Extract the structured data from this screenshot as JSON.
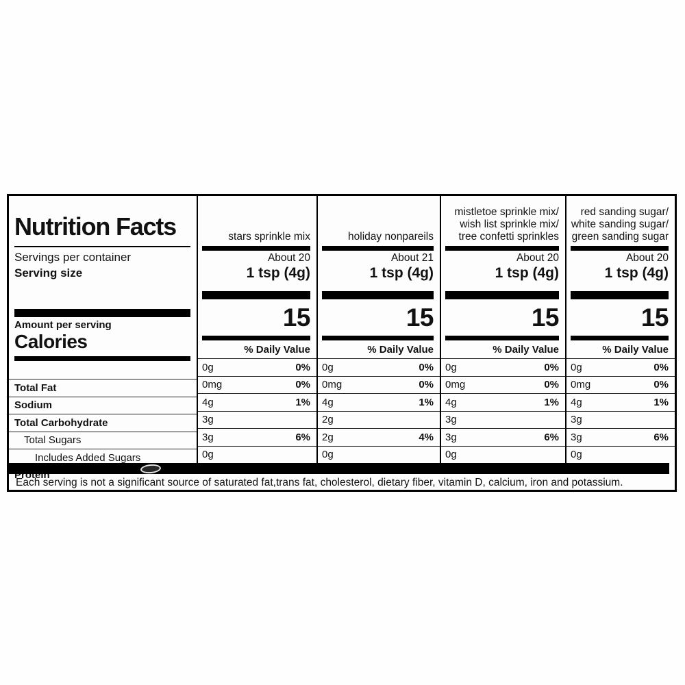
{
  "label": {
    "title": "Nutrition Facts",
    "servings_per_container_label": "Servings per container",
    "serving_size_label": "Serving size",
    "amount_per_serving_label": "Amount per serving",
    "calories_label": "Calories",
    "daily_value_label": "% Daily Value",
    "nutrients": [
      {
        "name": "Total Fat",
        "style": "bold",
        "indent": 0
      },
      {
        "name": "Sodium",
        "style": "bold",
        "indent": 0
      },
      {
        "name": "Total Carbohydrate",
        "style": "bold",
        "indent": 0
      },
      {
        "name": "Total Sugars",
        "style": "regular",
        "indent": 1
      },
      {
        "name": "Includes Added Sugars",
        "style": "regular",
        "indent": 2
      },
      {
        "name": "Protein",
        "style": "bold",
        "indent": 0
      }
    ],
    "products": [
      {
        "name_lines": [
          "stars sprinkle mix"
        ],
        "servings": "About 20",
        "serving_size": "1 tsp (4g)",
        "calories": "15",
        "rows": [
          {
            "amount": "0g",
            "dv": "0%"
          },
          {
            "amount": "0mg",
            "dv": "0%"
          },
          {
            "amount": "4g",
            "dv": "1%"
          },
          {
            "amount": "3g",
            "dv": ""
          },
          {
            "amount": "3g",
            "dv": "6%"
          },
          {
            "amount": "0g",
            "dv": ""
          }
        ]
      },
      {
        "name_lines": [
          "holiday nonpareils"
        ],
        "servings": "About 21",
        "serving_size": "1 tsp (4g)",
        "calories": "15",
        "rows": [
          {
            "amount": "0g",
            "dv": "0%"
          },
          {
            "amount": "0mg",
            "dv": "0%"
          },
          {
            "amount": "4g",
            "dv": "1%"
          },
          {
            "amount": "2g",
            "dv": ""
          },
          {
            "amount": "2g",
            "dv": "4%"
          },
          {
            "amount": "0g",
            "dv": ""
          }
        ]
      },
      {
        "name_lines": [
          "mistletoe sprinkle mix/",
          "wish list sprinkle mix/",
          "tree confetti sprinkles"
        ],
        "servings": "About 20",
        "serving_size": "1 tsp (4g)",
        "calories": "15",
        "rows": [
          {
            "amount": "0g",
            "dv": "0%"
          },
          {
            "amount": "0mg",
            "dv": "0%"
          },
          {
            "amount": "4g",
            "dv": "1%"
          },
          {
            "amount": "3g",
            "dv": ""
          },
          {
            "amount": "3g",
            "dv": "6%"
          },
          {
            "amount": "0g",
            "dv": ""
          }
        ]
      },
      {
        "name_lines": [
          "red sanding sugar/",
          "white sanding sugar/",
          "green sanding sugar"
        ],
        "servings": "About 20",
        "serving_size": "1 tsp (4g)",
        "calories": "15",
        "rows": [
          {
            "amount": "0g",
            "dv": "0%"
          },
          {
            "amount": "0mg",
            "dv": "0%"
          },
          {
            "amount": "4g",
            "dv": "1%"
          },
          {
            "amount": "3g",
            "dv": ""
          },
          {
            "amount": "3g",
            "dv": "6%"
          },
          {
            "amount": "0g",
            "dv": ""
          }
        ]
      }
    ],
    "footnote": "Each serving is not a significant source of saturated fat,trans fat, cholesterol, dietary fiber, vitamin D, calcium, iron and potassium.",
    "colors": {
      "ink": "#111111",
      "bar": "#000000",
      "background": "#fdfdfd"
    }
  }
}
